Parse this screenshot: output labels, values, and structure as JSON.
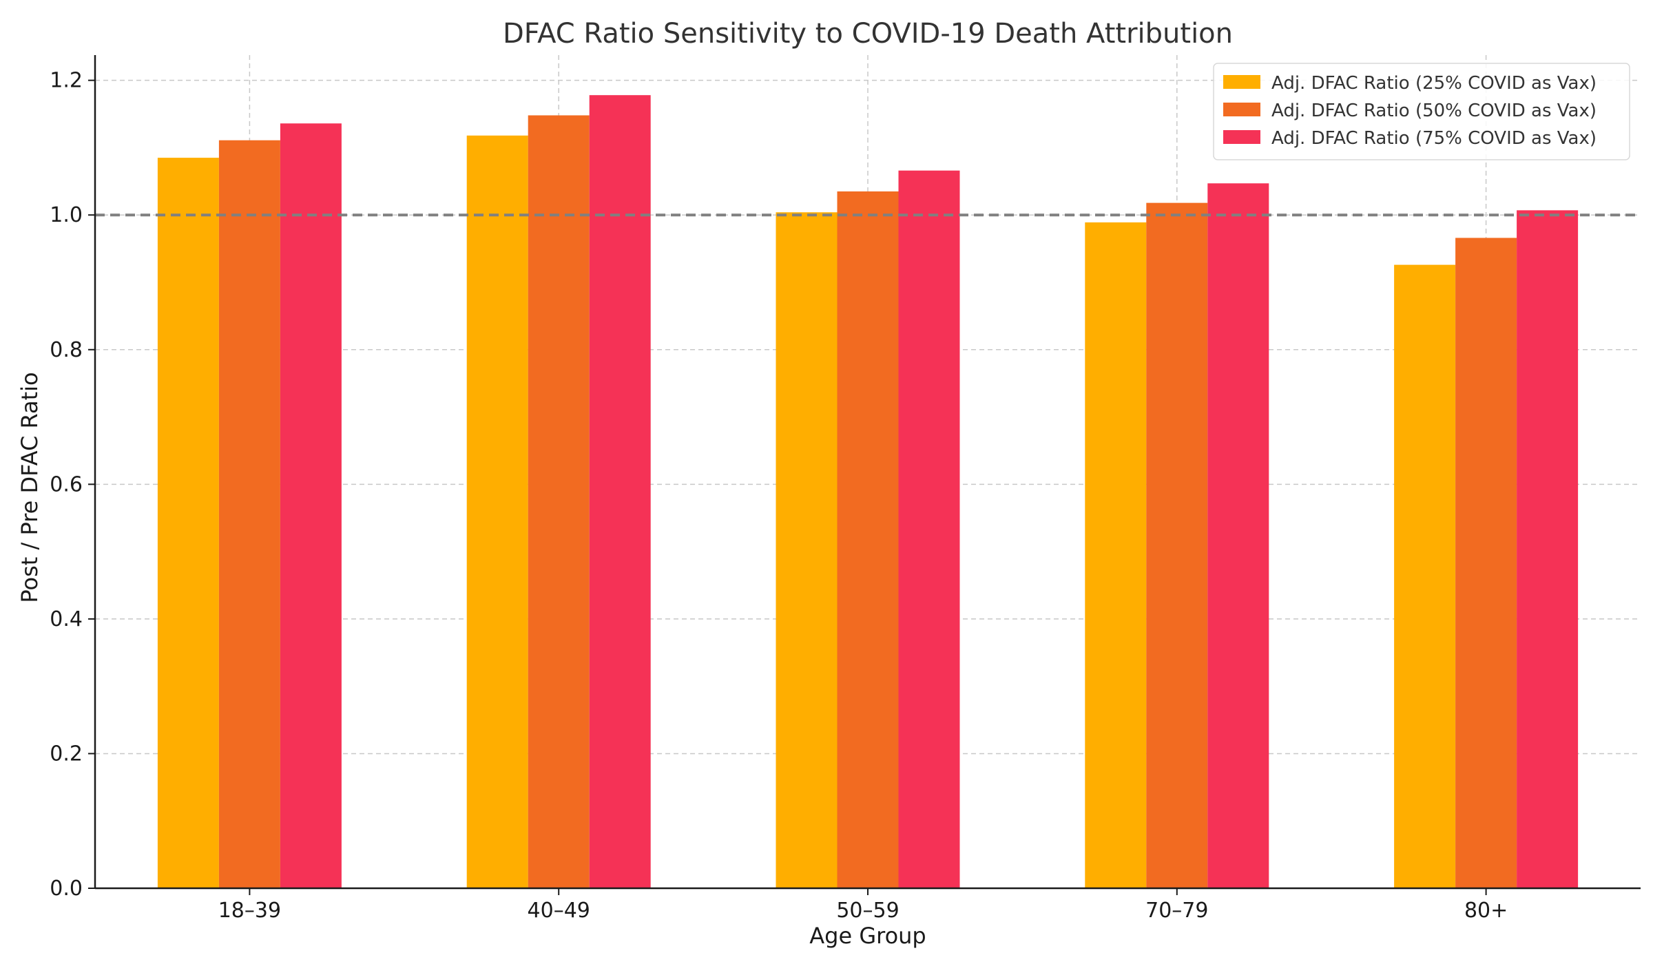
{
  "chart_data": {
    "type": "bar",
    "title": "DFAC Ratio Sensitivity to COVID-19 Death Attribution",
    "xlabel": "Age Group",
    "ylabel": "Post / Pre DFAC Ratio",
    "categories": [
      "18–39",
      "40–49",
      "50–59",
      "70–79",
      "80+"
    ],
    "series": [
      {
        "name": "Adj. DFAC Ratio (25% COVID as Vax)",
        "color": "#FFAE00",
        "values": [
          1.085,
          1.118,
          1.004,
          0.989,
          0.926
        ]
      },
      {
        "name": "Adj. DFAC Ratio (50% COVID as Vax)",
        "color": "#F26B21",
        "values": [
          1.111,
          1.148,
          1.035,
          1.018,
          0.966
        ]
      },
      {
        "name": "Adj. DFAC Ratio (75% COVID as Vax)",
        "color": "#F53256",
        "values": [
          1.136,
          1.178,
          1.066,
          1.047,
          1.007
        ]
      }
    ],
    "ylim": [
      0,
      1.2375
    ],
    "yticks": [
      0.0,
      0.2,
      0.4,
      0.6,
      0.8,
      1.0,
      1.2
    ],
    "reference_line": {
      "y": 1.0,
      "color": "#808080",
      "style": "dashed"
    },
    "grid": true,
    "legend": {
      "position": "top-right"
    }
  }
}
